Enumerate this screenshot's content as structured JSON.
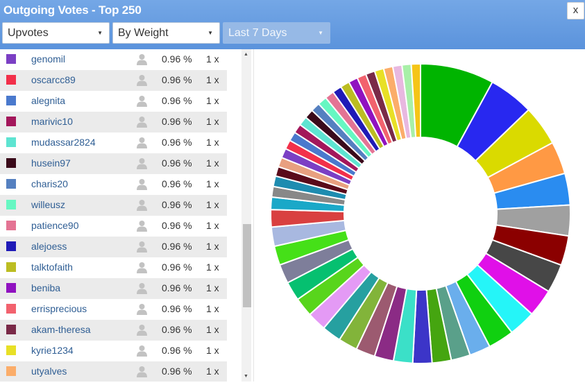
{
  "window": {
    "title": "Outgoing Votes - Top 250",
    "close_label": "x"
  },
  "filters": {
    "type": "Upvotes",
    "sort": "By Weight",
    "period": "Last 7 Days"
  },
  "voters": [
    {
      "name": "genomil",
      "percent": "0.96 %",
      "count": "1 x",
      "color": "#7b3fc4"
    },
    {
      "name": "oscarcc89",
      "percent": "0.96 %",
      "count": "1 x",
      "color": "#f2304a"
    },
    {
      "name": "alegnita",
      "percent": "0.96 %",
      "count": "1 x",
      "color": "#4a79cd"
    },
    {
      "name": "marivic10",
      "percent": "0.96 %",
      "count": "1 x",
      "color": "#a3175b"
    },
    {
      "name": "mudassar2824",
      "percent": "0.96 %",
      "count": "1 x",
      "color": "#5ee4d1"
    },
    {
      "name": "husein97",
      "percent": "0.96 %",
      "count": "1 x",
      "color": "#3a0a1a"
    },
    {
      "name": "charis20",
      "percent": "0.96 %",
      "count": "1 x",
      "color": "#5580c0"
    },
    {
      "name": "willeusz",
      "percent": "0.96 %",
      "count": "1 x",
      "color": "#66f7c2"
    },
    {
      "name": "patience90",
      "percent": "0.96 %",
      "count": "1 x",
      "color": "#e47494"
    },
    {
      "name": "alejoess",
      "percent": "0.96 %",
      "count": "1 x",
      "color": "#1f1ab7"
    },
    {
      "name": "talktofaith",
      "percent": "0.96 %",
      "count": "1 x",
      "color": "#bcbd22"
    },
    {
      "name": "beniba",
      "percent": "0.96 %",
      "count": "1 x",
      "color": "#9012c0"
    },
    {
      "name": "errisprecious",
      "percent": "0.96 %",
      "count": "1 x",
      "color": "#f2626e"
    },
    {
      "name": "akam-theresa",
      "percent": "0.96 %",
      "count": "1 x",
      "color": "#7a2a48"
    },
    {
      "name": "kyrie1234",
      "percent": "0.96 %",
      "count": "1 x",
      "color": "#e8e026"
    },
    {
      "name": "utyalves",
      "percent": "0.96 %",
      "count": "1 x",
      "color": "#fbad6a"
    }
  ],
  "chart_data": {
    "type": "pie",
    "donut": true,
    "slices": [
      {
        "value": 7.7,
        "color": "#00b400"
      },
      {
        "value": 4.7,
        "color": "#2828f0"
      },
      {
        "value": 4.2,
        "color": "#dada00"
      },
      {
        "value": 3.4,
        "color": "#ff9944"
      },
      {
        "value": 3.3,
        "color": "#2a8cf0"
      },
      {
        "value": 3.2,
        "color": "#a0a0a0"
      },
      {
        "value": 3.1,
        "color": "#8b0000"
      },
      {
        "value": 3.0,
        "color": "#474747"
      },
      {
        "value": 2.9,
        "color": "#e010e8"
      },
      {
        "value": 2.8,
        "color": "#25f5f8"
      },
      {
        "value": 2.7,
        "color": "#10d010"
      },
      {
        "value": 2.2,
        "color": "#6aaeec"
      },
      {
        "value": 2.0,
        "color": "#5aa08a"
      },
      {
        "value": 2.0,
        "color": "#45a510"
      },
      {
        "value": 2.0,
        "color": "#3c35c8"
      },
      {
        "value": 2.0,
        "color": "#3be0c8"
      },
      {
        "value": 2.0,
        "color": "#8b2b85"
      },
      {
        "value": 2.0,
        "color": "#9c5a70"
      },
      {
        "value": 2.0,
        "color": "#82b43a"
      },
      {
        "value": 2.0,
        "color": "#26a0a0"
      },
      {
        "value": 2.0,
        "color": "#e49af5"
      },
      {
        "value": 2.0,
        "color": "#58d51c"
      },
      {
        "value": 2.0,
        "color": "#06c070"
      },
      {
        "value": 2.0,
        "color": "#7e7e9a"
      },
      {
        "value": 2.0,
        "color": "#45e018"
      },
      {
        "value": 2.0,
        "color": "#a8b8e0"
      },
      {
        "value": 1.8,
        "color": "#d94040"
      },
      {
        "value": 1.3,
        "color": "#1aa8c8"
      },
      {
        "value": 1.1,
        "color": "#888888"
      },
      {
        "value": 1.1,
        "color": "#1e8cb0"
      },
      {
        "value": 1.0,
        "color": "#5a0a1a"
      },
      {
        "value": 1.0,
        "color": "#e8a080"
      },
      {
        "value": 1.0,
        "color": "#7b3fc4"
      },
      {
        "value": 0.96,
        "color": "#f2304a"
      },
      {
        "value": 0.96,
        "color": "#4a79cd"
      },
      {
        "value": 0.96,
        "color": "#a3175b"
      },
      {
        "value": 0.96,
        "color": "#5ee4d1"
      },
      {
        "value": 0.96,
        "color": "#3a0a1a"
      },
      {
        "value": 0.96,
        "color": "#5580c0"
      },
      {
        "value": 0.96,
        "color": "#66f7c2"
      },
      {
        "value": 0.96,
        "color": "#e47494"
      },
      {
        "value": 0.96,
        "color": "#1f1ab7"
      },
      {
        "value": 0.96,
        "color": "#bcbd22"
      },
      {
        "value": 0.96,
        "color": "#9012c0"
      },
      {
        "value": 0.96,
        "color": "#f2626e"
      },
      {
        "value": 0.96,
        "color": "#7a2a48"
      },
      {
        "value": 0.96,
        "color": "#e8e026"
      },
      {
        "value": 0.96,
        "color": "#fbad6a"
      },
      {
        "value": 0.96,
        "color": "#e8b8e0"
      },
      {
        "value": 0.96,
        "color": "#a8f0a8"
      },
      {
        "value": 0.96,
        "color": "#f5c518"
      }
    ]
  }
}
